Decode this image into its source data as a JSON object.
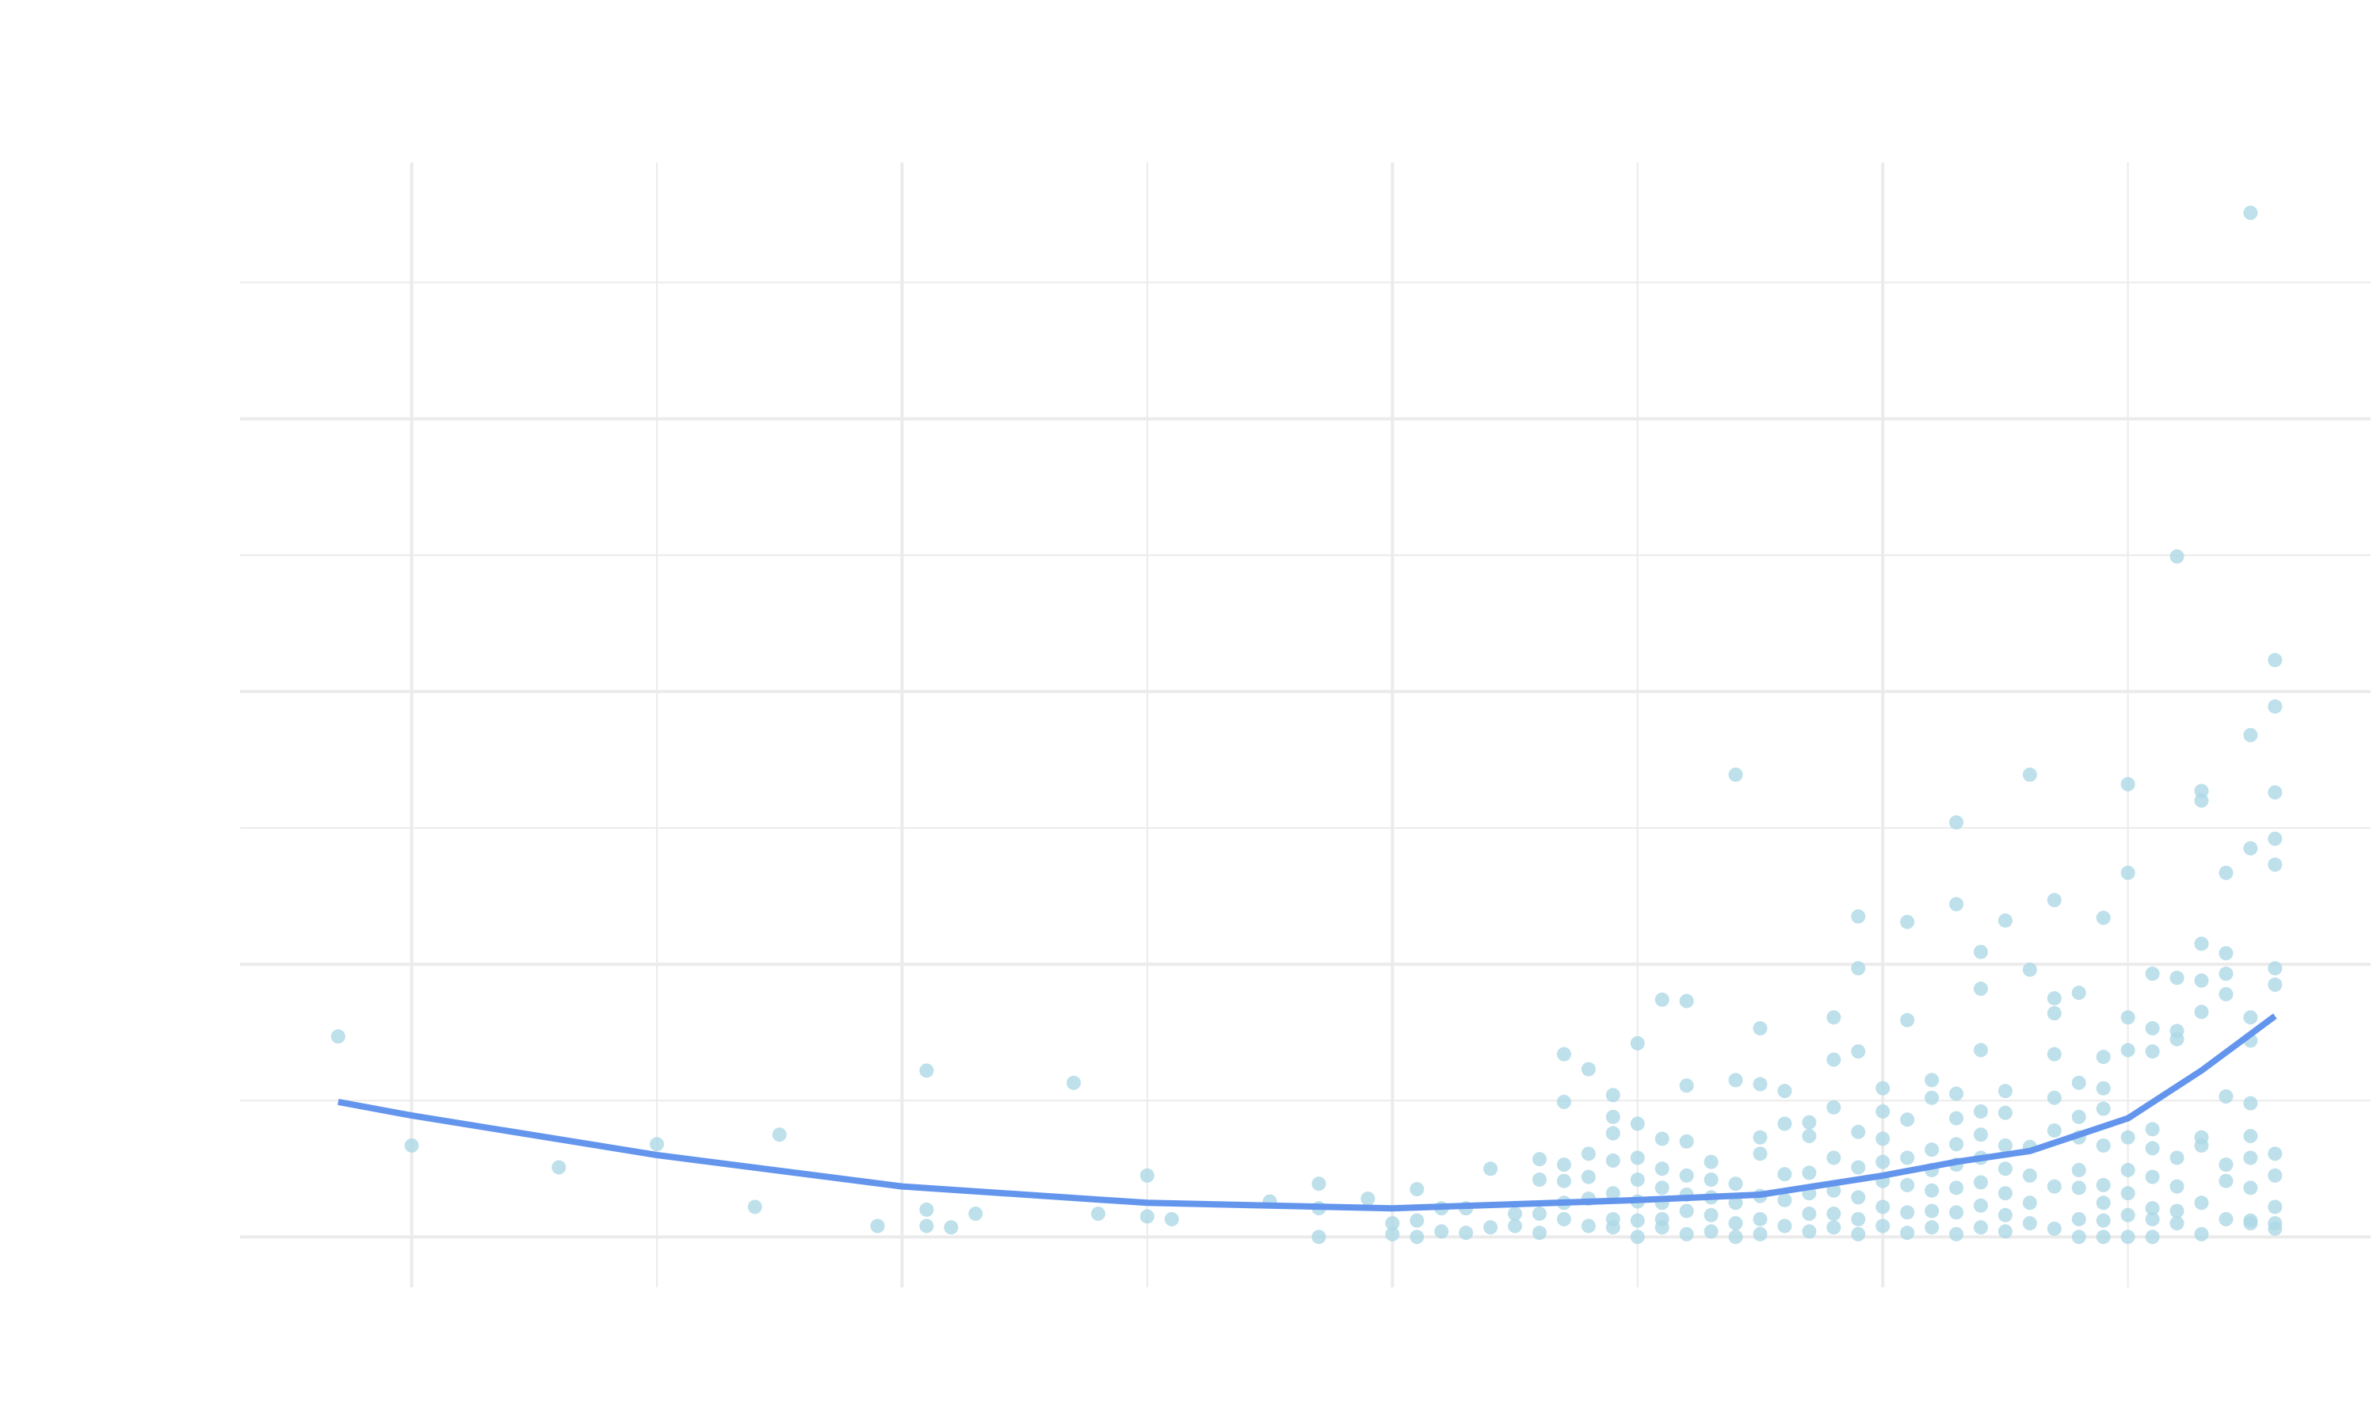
{
  "chart_data": {
    "type": "scatter",
    "color": "#add8e6",
    "x": [
      -0.3,
      0,
      0.6,
      1.0,
      1.4,
      1.5,
      1.9,
      2.1,
      2.1,
      2.1,
      2.2,
      2.3,
      2.7,
      2.8,
      3.0,
      3.0,
      3.1,
      3.5,
      3.7,
      3.7,
      3.7,
      3.9,
      4.0,
      4.0,
      4.1,
      4.1,
      4.1,
      4.2,
      4.2,
      4.3,
      4.3,
      4.4,
      4.4,
      4.5,
      4.5,
      4.6,
      4.6,
      4.6,
      4.6,
      4.7,
      4.7,
      4.7,
      4.7,
      4.7,
      4.7,
      4.8,
      4.8,
      4.8,
      4.8,
      4.8,
      4.9,
      4.9,
      4.9,
      4.9,
      4.9,
      4.9,
      4.9,
      5.0,
      5.0,
      5.0,
      5.0,
      5.0,
      5.0,
      5.0,
      5.1,
      5.1,
      5.1,
      5.1,
      5.1,
      5.1,
      5.1,
      5.2,
      5.2,
      5.2,
      5.2,
      5.2,
      5.2,
      5.2,
      5.3,
      5.3,
      5.3,
      5.3,
      5.3,
      5.4,
      5.4,
      5.4,
      5.4,
      5.4,
      5.4,
      5.5,
      5.5,
      5.5,
      5.5,
      5.5,
      5.5,
      5.5,
      5.6,
      5.6,
      5.6,
      5.6,
      5.6,
      5.7,
      5.7,
      5.7,
      5.7,
      5.7,
      5.7,
      5.8,
      5.8,
      5.8,
      5.8,
      5.8,
      5.8,
      5.8,
      5.9,
      5.9,
      5.9,
      5.9,
      5.9,
      5.9,
      5.9,
      5.9,
      6.0,
      6.0,
      6.0,
      6.0,
      6.0,
      6.0,
      6.0,
      6.1,
      6.1,
      6.1,
      6.1,
      6.1,
      6.1,
      6.1,
      6.2,
      6.2,
      6.2,
      6.2,
      6.2,
      6.2,
      6.2,
      6.3,
      6.3,
      6.3,
      6.3,
      6.3,
      6.3,
      6.3,
      6.3,
      6.3,
      6.4,
      6.4,
      6.4,
      6.4,
      6.4,
      6.4,
      6.4,
      6.4,
      6.4,
      6.5,
      6.5,
      6.5,
      6.5,
      6.5,
      6.5,
      6.5,
      6.5,
      6.6,
      6.6,
      6.6,
      6.6,
      6.6,
      6.6,
      6.7,
      6.7,
      6.7,
      6.7,
      6.7,
      6.7,
      6.7,
      6.7,
      6.8,
      6.8,
      6.8,
      6.8,
      6.8,
      6.8,
      6.8,
      6.8,
      6.9,
      6.9,
      6.9,
      6.9,
      6.9,
      6.9,
      6.9,
      6.9,
      6.9,
      7.0,
      7.0,
      7.0,
      7.0,
      7.0,
      7.0,
      7.0,
      7.0,
      7.0,
      7.1,
      7.1,
      7.1,
      7.1,
      7.1,
      7.1,
      7.1,
      7.1,
      7.1,
      7.2,
      7.2,
      7.2,
      7.2,
      7.2,
      7.2,
      7.2,
      7.2,
      7.3,
      7.3,
      7.3,
      7.3,
      7.3,
      7.3,
      7.3,
      7.3,
      7.3,
      7.4,
      7.4,
      7.4,
      7.4,
      7.4,
      7.4,
      7.4,
      7.4,
      7.5,
      7.5,
      7.5,
      7.5,
      7.5,
      7.5,
      7.5,
      7.5,
      7.5,
      7.5,
      7.5,
      7.6,
      7.6,
      7.6,
      7.6,
      7.6,
      7.6,
      7.6,
      7.6,
      7.6,
      7.6,
      7.6,
      7.6
    ],
    "values": [
      1.47,
      0.67,
      0.51,
      0.68,
      0.22,
      0.75,
      0.08,
      1.22,
      0.2,
      0.08,
      0.07,
      0.17,
      1.13,
      0.17,
      0.45,
      0.15,
      0.13,
      0.26,
      0.39,
      0.21,
      0,
      0.28,
      0.1,
      0.02,
      0.35,
      0.12,
      0,
      0.21,
      0.04,
      0.21,
      0.03,
      0.5,
      0.07,
      0.17,
      0.08,
      0.57,
      0.42,
      0.17,
      0.03,
      1.34,
      0.99,
      0.53,
      0.41,
      0.25,
      0.13,
      1.23,
      0.61,
      0.44,
      0.28,
      0.08,
      1.04,
      0.88,
      0.76,
      0.56,
      0.32,
      0.13,
      0.07,
      1.42,
      0.83,
      0.58,
      0.42,
      0.26,
      0.12,
      0,
      1.74,
      0.72,
      0.5,
      0.36,
      0.25,
      0.13,
      0.07,
      1.73,
      1.11,
      0.7,
      0.45,
      0.31,
      0.19,
      0.02,
      0.55,
      0.42,
      0.29,
      0.16,
      0.04,
      3.39,
      1.15,
      0.39,
      0.25,
      0.1,
      0,
      1.53,
      1.12,
      0.73,
      0.61,
      0.3,
      0.13,
      0.02,
      1.07,
      0.83,
      0.46,
      0.27,
      0.08,
      0.84,
      0.74,
      0.47,
      0.32,
      0.17,
      0.04,
      1.61,
      1.3,
      0.95,
      0.58,
      0.34,
      0.17,
      0.07,
      2.35,
      1.97,
      1.36,
      0.77,
      0.51,
      0.29,
      0.13,
      0.02,
      1.09,
      0.92,
      0.72,
      0.55,
      0.41,
      0.22,
      0.08,
      2.31,
      1.59,
      0.86,
      0.58,
      0.38,
      0.18,
      0.03,
      1.15,
      1.02,
      0.64,
      0.49,
      0.34,
      0.19,
      0.07,
      3.04,
      2.44,
      1.05,
      0.87,
      0.68,
      0.53,
      0.36,
      0.18,
      0.02,
      2.09,
      1.82,
      1.37,
      0.92,
      0.75,
      0.58,
      0.4,
      0.23,
      0.07,
      2.32,
      1.07,
      0.91,
      0.67,
      0.5,
      0.32,
      0.16,
      0.04,
      3.39,
      1.96,
      0.66,
      0.45,
      0.25,
      0.1,
      2.47,
      1.75,
      1.64,
      1.34,
      1.02,
      0.78,
      0.37,
      0.06,
      1.79,
      1.13,
      0.88,
      0.73,
      0.49,
      0.36,
      0.13,
      0,
      2.34,
      1.32,
      1.09,
      0.94,
      0.67,
      0.38,
      0.25,
      0.12,
      0,
      3.32,
      2.67,
      1.61,
      1.37,
      0.73,
      0.49,
      0.32,
      0.16,
      0,
      1.93,
      1.53,
      1.36,
      0.79,
      0.65,
      0.44,
      0.21,
      0.13,
      0,
      4.99,
      1.9,
      1.51,
      1.45,
      0.58,
      0.37,
      0.19,
      0.1,
      3.27,
      3.2,
      2.15,
      1.88,
      1.65,
      0.73,
      0.67,
      0.25,
      0.02,
      2.67,
      2.08,
      1.93,
      1.78,
      1.03,
      0.53,
      0.41,
      0.13,
      7.51,
      3.68,
      2.85,
      1.61,
      1.44,
      0.98,
      0.74,
      0.58,
      0.36,
      0.12,
      0.1,
      4.23,
      3.89,
      3.26,
      2.92,
      2.73,
      1.97,
      1.85,
      0.61,
      0.45,
      0.22,
      0.1,
      0.06
    ],
    "trend": {
      "color": "#6495ed",
      "x": [
        -0.3,
        0,
        1,
        2,
        3,
        4,
        5,
        5.5,
        6,
        6.3,
        6.6,
        7,
        7.3,
        7.6
      ],
      "values": [
        0.99,
        0.89,
        0.6,
        0.37,
        0.25,
        0.21,
        0.27,
        0.31,
        0.45,
        0.55,
        0.63,
        0.87,
        1.22,
        1.62
      ]
    },
    "xlim": [
      -0.7,
      7.99
    ],
    "ylim": [
      -0.37,
      7.88
    ],
    "xticks": [
      0,
      1,
      2,
      3,
      4,
      5,
      6,
      7
    ],
    "yticks": [
      0,
      1,
      2,
      3,
      4,
      5,
      6,
      7
    ],
    "grid": true
  }
}
